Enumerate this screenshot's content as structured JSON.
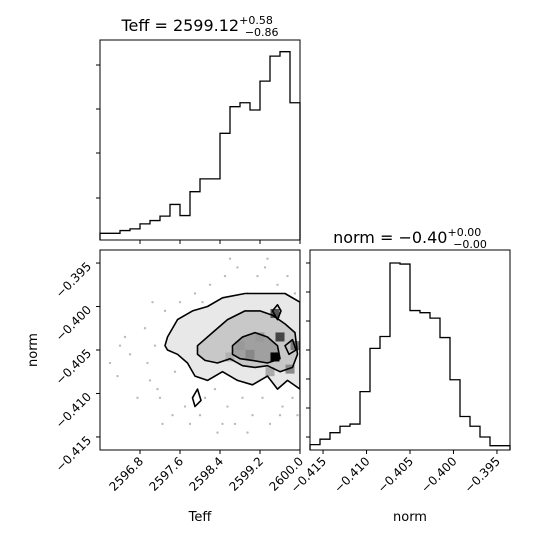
{
  "chart_data": [
    {
      "type": "histogram",
      "panel": "Teff marginal",
      "title": {
        "prefix": "Teff = 2599.12",
        "sup": "+0.58",
        "sub": "−0.86"
      },
      "xlim": [
        2596.0,
        2600.0
      ],
      "bin_edges": [
        2596.0,
        2596.2,
        2596.4,
        2596.6,
        2596.8,
        2597.0,
        2597.2,
        2597.4,
        2597.6,
        2597.8,
        2598.0,
        2598.2,
        2598.4,
        2598.6,
        2598.8,
        2599.0,
        2599.2,
        2599.4,
        2599.6,
        2599.8,
        2600.0
      ],
      "counts": [
        1.2,
        1.2,
        1.7,
        2.0,
        2.9,
        3.5,
        4.3,
        6.4,
        4.4,
        8.7,
        11.0,
        11.0,
        19.2,
        24.0,
        24.7,
        23.4,
        28.6,
        33.1,
        33.9,
        24.7
      ],
      "ylim": [
        0,
        36
      ]
    },
    {
      "type": "2d-histogram-contour",
      "panel": "Teff vs norm",
      "xlabel": "Teff",
      "ylabel": "norm",
      "xlim": [
        2596.0,
        2600.0
      ],
      "ylim": [
        -0.4165,
        -0.3935
      ],
      "xticks": [
        "2596.8",
        "2597.6",
        "2598.4",
        "2599.2",
        "2600.0"
      ],
      "xtick_values": [
        2596.8,
        2597.6,
        2598.4,
        2599.2,
        2600.0
      ],
      "yticks": [
        "−0.395",
        "−0.400",
        "−0.405",
        "−0.410",
        "−0.415"
      ],
      "ytick_values": [
        -0.395,
        -0.4,
        -0.405,
        -0.41,
        -0.415
      ],
      "contours": [
        {
          "level": "outer",
          "points": [
            [
              2597.35,
              -0.4035
            ],
            [
              2597.55,
              -0.4015
            ],
            [
              2597.85,
              -0.4005
            ],
            [
              2598.15,
              -0.4
            ],
            [
              2598.45,
              -0.399
            ],
            [
              2598.9,
              -0.3985
            ],
            [
              2599.35,
              -0.3985
            ],
            [
              2599.7,
              -0.3985
            ],
            [
              2600.0,
              -0.3995
            ],
            [
              2600.0,
              -0.4095
            ],
            [
              2599.75,
              -0.4085
            ],
            [
              2599.55,
              -0.4095
            ],
            [
              2599.35,
              -0.408
            ],
            [
              2599.05,
              -0.409
            ],
            [
              2598.75,
              -0.4085
            ],
            [
              2598.45,
              -0.4075
            ],
            [
              2598.15,
              -0.4085
            ],
            [
              2597.9,
              -0.408
            ],
            [
              2597.75,
              -0.4065
            ],
            [
              2597.55,
              -0.4055
            ],
            [
              2597.35,
              -0.405
            ],
            [
              2597.3,
              -0.4045
            ],
            [
              2597.35,
              -0.4035
            ]
          ]
        },
        {
          "level": "middle",
          "points": [
            [
              2597.95,
              -0.4045
            ],
            [
              2598.25,
              -0.403
            ],
            [
              2598.55,
              -0.4015
            ],
            [
              2598.9,
              -0.4005
            ],
            [
              2599.2,
              -0.4005
            ],
            [
              2599.45,
              -0.401
            ],
            [
              2599.7,
              -0.402
            ],
            [
              2599.9,
              -0.403
            ],
            [
              2599.95,
              -0.4055
            ],
            [
              2599.85,
              -0.407
            ],
            [
              2599.6,
              -0.4075
            ],
            [
              2599.35,
              -0.4068
            ],
            [
              2599.1,
              -0.407
            ],
            [
              2598.85,
              -0.4068
            ],
            [
              2598.6,
              -0.406
            ],
            [
              2598.35,
              -0.4065
            ],
            [
              2598.1,
              -0.4062
            ],
            [
              2597.95,
              -0.4055
            ],
            [
              2597.95,
              -0.4045
            ]
          ]
        },
        {
          "level": "inner",
          "points": [
            [
              2598.65,
              -0.4045
            ],
            [
              2598.85,
              -0.4035
            ],
            [
              2599.1,
              -0.403
            ],
            [
              2599.35,
              -0.4035
            ],
            [
              2599.55,
              -0.4045
            ],
            [
              2599.6,
              -0.406
            ],
            [
              2599.35,
              -0.4065
            ],
            [
              2599.05,
              -0.4062
            ],
            [
              2598.8,
              -0.406
            ],
            [
              2598.65,
              -0.4055
            ],
            [
              2598.65,
              -0.4045
            ]
          ]
        },
        {
          "level": "islet-1",
          "points": [
            [
              2599.45,
              -0.4005
            ],
            [
              2599.55,
              -0.3998
            ],
            [
              2599.62,
              -0.4005
            ],
            [
              2599.55,
              -0.4015
            ],
            [
              2599.45,
              -0.4005
            ]
          ]
        },
        {
          "level": "islet-2",
          "points": [
            [
              2597.85,
              -0.4105
            ],
            [
              2597.95,
              -0.4095
            ],
            [
              2598.02,
              -0.4108
            ],
            [
              2597.9,
              -0.4115
            ],
            [
              2597.85,
              -0.4105
            ]
          ]
        },
        {
          "level": "islet-3",
          "points": [
            [
              2599.7,
              -0.4045
            ],
            [
              2599.85,
              -0.4038
            ],
            [
              2599.92,
              -0.405
            ],
            [
              2599.78,
              -0.4055
            ],
            [
              2599.7,
              -0.4045
            ]
          ]
        }
      ],
      "dense_cells": [
        {
          "x": 2599.5,
          "y": -0.4058,
          "shade": "#000000"
        },
        {
          "x": 2599.6,
          "y": -0.4035,
          "shade": "#444444"
        },
        {
          "x": 2599.0,
          "y": -0.4055,
          "shade": "#888888"
        },
        {
          "x": 2598.8,
          "y": -0.4045,
          "shade": "#999999"
        },
        {
          "x": 2599.2,
          "y": -0.4035,
          "shade": "#9a9a9a"
        },
        {
          "x": 2599.8,
          "y": -0.4072,
          "shade": "#8a8a8a"
        },
        {
          "x": 2599.4,
          "y": -0.4075,
          "shade": "#aaaaaa"
        },
        {
          "x": 2598.6,
          "y": -0.4058,
          "shade": "#b0b0b0"
        },
        {
          "x": 2599.9,
          "y": -0.4045,
          "shade": "#7a7a7a"
        },
        {
          "x": 2599.5,
          "y": -0.4008,
          "shade": "#555555"
        }
      ],
      "scatter_points": [
        [
          2596.2,
          -0.4065
        ],
        [
          2596.35,
          -0.408
        ],
        [
          2596.6,
          -0.4055
        ],
        [
          2596.9,
          -0.4025
        ],
        [
          2597.0,
          -0.4085
        ],
        [
          2597.1,
          -0.4045
        ],
        [
          2597.2,
          -0.4105
        ],
        [
          2597.3,
          -0.4005
        ],
        [
          2597.45,
          -0.4125
        ],
        [
          2597.5,
          -0.4075
        ],
        [
          2597.6,
          -0.3995
        ],
        [
          2597.7,
          -0.4115
        ],
        [
          2597.8,
          -0.4135
        ],
        [
          2597.9,
          -0.3985
        ],
        [
          2598.0,
          -0.4125
        ],
        [
          2598.1,
          -0.4105
        ],
        [
          2598.2,
          -0.3975
        ],
        [
          2598.3,
          -0.4095
        ],
        [
          2598.35,
          -0.4145
        ],
        [
          2598.5,
          -0.3965
        ],
        [
          2598.55,
          -0.4115
        ],
        [
          2598.7,
          -0.4135
        ],
        [
          2598.75,
          -0.3955
        ],
        [
          2598.85,
          -0.4105
        ],
        [
          2598.95,
          -0.3985
        ],
        [
          2599.05,
          -0.4125
        ],
        [
          2599.15,
          -0.3965
        ],
        [
          2599.25,
          -0.4105
        ],
        [
          2599.3,
          -0.3955
        ],
        [
          2599.4,
          -0.4135
        ],
        [
          2599.55,
          -0.3975
        ],
        [
          2599.65,
          -0.4115
        ],
        [
          2599.75,
          -0.3965
        ],
        [
          2599.85,
          -0.4105
        ],
        [
          2599.9,
          -0.3985
        ],
        [
          2596.5,
          -0.4035
        ],
        [
          2596.75,
          -0.4105
        ],
        [
          2597.05,
          -0.3995
        ],
        [
          2597.25,
          -0.4135
        ],
        [
          2597.65,
          -0.4035
        ],
        [
          2598.05,
          -0.3995
        ],
        [
          2598.45,
          -0.4135
        ],
        [
          2598.95,
          -0.4145
        ],
        [
          2599.35,
          -0.3945
        ],
        [
          2599.6,
          -0.4125
        ],
        [
          2599.95,
          -0.4125
        ],
        [
          2598.6,
          -0.3945
        ],
        [
          2596.4,
          -0.4045
        ],
        [
          2596.95,
          -0.4065
        ],
        [
          2597.15,
          -0.4095
        ]
      ]
    },
    {
      "type": "histogram",
      "panel": "norm marginal",
      "title": {
        "prefix": "norm = −0.40",
        "sup": "+0.00",
        "sub": "−0.00"
      },
      "xlabel": "norm",
      "xlim": [
        -0.4165,
        -0.3935
      ],
      "xticks": [
        "−0.415",
        "−0.410",
        "−0.405",
        "−0.400",
        "−0.395"
      ],
      "xtick_values": [
        -0.415,
        -0.41,
        -0.405,
        -0.4,
        -0.395
      ],
      "bin_edges": [
        -0.4165,
        -0.41535,
        -0.4142,
        -0.41305,
        -0.4119,
        -0.41075,
        -0.4096,
        -0.40845,
        -0.4073,
        -0.40615,
        -0.405,
        -0.40385,
        -0.4027,
        -0.40155,
        -0.4004,
        -0.39925,
        -0.3981,
        -0.39695,
        -0.3958,
        -0.39465,
        -0.3935
      ],
      "counts": [
        0.5,
        1.0,
        1.6,
        2.2,
        2.4,
        5.4,
        9.4,
        10.5,
        17.3,
        17.2,
        12.9,
        12.7,
        12.2,
        10.4,
        6.5,
        3.1,
        2.2,
        1.2,
        0.4,
        0.4
      ],
      "ylim": [
        0,
        18.5
      ]
    }
  ],
  "labels": {
    "xlabel_teff": "Teff",
    "ylabel_norm": "norm",
    "xlabel_norm": "norm"
  },
  "colors": {
    "line": "#000000",
    "scatter": "#bbbbbb"
  }
}
